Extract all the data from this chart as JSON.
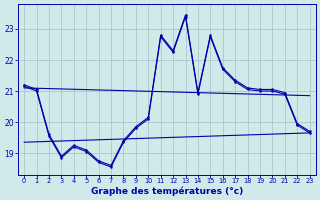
{
  "bg_color": "#d0eaea",
  "grid_color": "#a0c8c8",
  "line_color": "#0000aa",
  "xlabel": "Graphe des températures (°c)",
  "xticks": [
    0,
    1,
    2,
    3,
    4,
    5,
    6,
    7,
    8,
    9,
    10,
    11,
    12,
    13,
    14,
    15,
    16,
    17,
    18,
    19,
    20,
    21,
    22,
    23
  ],
  "yticks": [
    19,
    20,
    21,
    22,
    23
  ],
  "xlim": [
    -0.5,
    23.5
  ],
  "ylim": [
    18.3,
    23.8
  ],
  "line1": {
    "x": [
      0,
      1,
      2,
      3,
      4,
      5,
      6,
      7,
      8,
      9,
      10,
      11,
      12,
      13,
      14,
      15,
      16,
      17,
      18,
      19,
      20,
      21,
      22,
      23
    ],
    "y": [
      21.2,
      21.05,
      19.6,
      18.9,
      19.25,
      19.1,
      18.75,
      18.6,
      19.4,
      19.85,
      20.15,
      22.8,
      22.3,
      23.45,
      20.95,
      22.8,
      21.75,
      21.35,
      21.1,
      21.05,
      21.05,
      20.95,
      19.95,
      19.7
    ]
  },
  "line2": {
    "x": [
      0,
      1,
      2,
      3,
      4,
      5,
      6,
      7,
      8,
      9,
      10,
      11,
      12,
      13,
      14,
      15,
      16,
      17,
      18,
      19,
      20,
      21,
      22,
      23
    ],
    "y": [
      21.15,
      21.0,
      19.55,
      18.85,
      19.2,
      19.05,
      18.7,
      18.55,
      19.35,
      19.8,
      20.1,
      22.75,
      22.25,
      23.4,
      20.9,
      22.75,
      21.7,
      21.3,
      21.05,
      21.0,
      21.0,
      20.9,
      19.9,
      19.65
    ]
  },
  "line3_upper_diag": {
    "x": [
      0,
      23
    ],
    "y": [
      21.1,
      20.85
    ]
  },
  "line4_lower_diag": {
    "x": [
      0,
      23
    ],
    "y": [
      19.35,
      19.65
    ]
  }
}
